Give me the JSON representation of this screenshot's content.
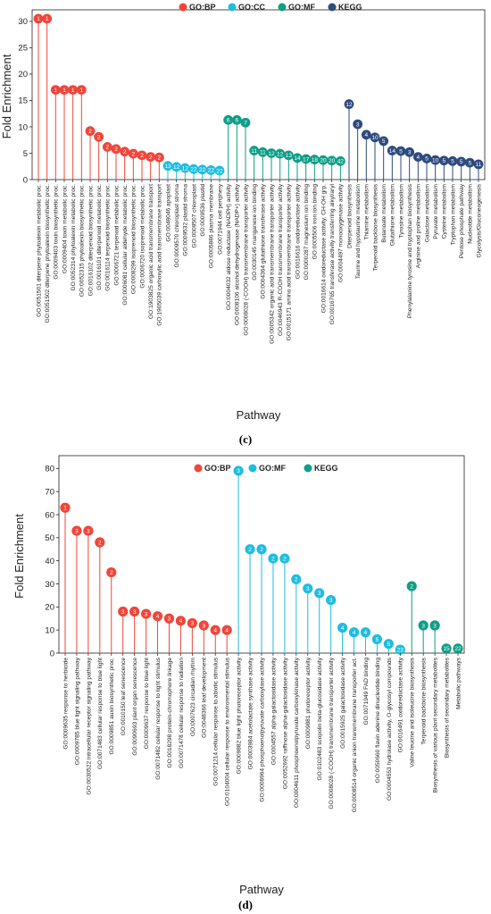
{
  "panel_c_label": "(c)",
  "panel_d_label": "(d)",
  "chart_data": [
    {
      "type": "lollipop",
      "ylabel": "Fold Enrichment",
      "xlabel": "Pathway",
      "ylim": [
        0,
        31.5
      ],
      "yticks": [
        0,
        5,
        10,
        15,
        20,
        25,
        30
      ],
      "grid": false,
      "legend": {
        "position": "top",
        "entries": [
          {
            "name": "GO:BP",
            "color": "#f0463a"
          },
          {
            "name": "GO:CC",
            "color": "#1ebde0"
          },
          {
            "name": "GO:MF",
            "color": "#0e9e86"
          },
          {
            "name": "KEGG",
            "color": "#2e4a7e"
          }
        ]
      },
      "points": [
        {
          "label": "GO:0051501 diterpene phytoalexin metabolic proc.",
          "value": 30.5,
          "count": "1",
          "group": "GO:BP"
        },
        {
          "label": "GO:0051502 diterpene phytoalexin biosynthetic proc.",
          "value": 30.5,
          "count": "1",
          "group": "GO:BP"
        },
        {
          "label": "GO:0009403 toxin biosynthetic proc.",
          "value": 17.0,
          "count": "1",
          "group": "GO:BP"
        },
        {
          "label": "GO:0009404 toxin metabolic proc.",
          "value": 17.0,
          "count": "1",
          "group": "GO:BP"
        },
        {
          "label": "GO:0052314 phytoalexin metabolic proc.",
          "value": 17.0,
          "count": "1",
          "group": "GO:BP"
        },
        {
          "label": "GO:0052315 phytoalexin biosynthetic proc.",
          "value": 17.0,
          "count": "1",
          "group": "GO:BP"
        },
        {
          "label": "GO:0016102 diterpenoid biosynthetic proc.",
          "value": 9.2,
          "count": "2",
          "group": "GO:BP"
        },
        {
          "label": "GO:0016101 diterpenoid metabolic proc.",
          "value": 8.1,
          "count": "2",
          "group": "GO:BP"
        },
        {
          "label": "GO:0016114 terpenoid biosynthetic proc.",
          "value": 6.2,
          "count": "2",
          "group": "GO:BP"
        },
        {
          "label": "GO:0006721 terpenoid metabolic proc.",
          "value": 5.8,
          "count": "2",
          "group": "GO:BP"
        },
        {
          "label": "GO:0006081 cellular aldehyde metabolic proc.",
          "value": 5.3,
          "count": "2",
          "group": "GO:BP"
        },
        {
          "label": "GO:0008299 isoprenoid biosynthetic proc.",
          "value": 4.9,
          "count": "2",
          "group": "GO:BP"
        },
        {
          "label": "GO:0006720 isoprenoid metabolic proc.",
          "value": 4.6,
          "count": "2",
          "group": "GO:BP"
        },
        {
          "label": "GO:1903825 organic acid transmembrane transport",
          "value": 4.3,
          "count": "2",
          "group": "GO:BP"
        },
        {
          "label": "GO:1905039 carboxylic acid transmembrane transport",
          "value": 4.2,
          "count": "2",
          "group": "GO:BP"
        },
        {
          "label": "GO:0048046 apoplast",
          "value": 2.6,
          "count": "13",
          "group": "GO:CC"
        },
        {
          "label": "GO:0009570 chloroplast stroma",
          "value": 2.4,
          "count": "12",
          "group": "GO:CC"
        },
        {
          "label": "GO:0009532 plastid stroma",
          "value": 2.2,
          "count": "12",
          "group": "GO:CC"
        },
        {
          "label": "GO:0009507 chloroplast",
          "value": 2.0,
          "count": "22",
          "group": "GO:CC"
        },
        {
          "label": "GO:0009536 plastid",
          "value": 1.9,
          "count": "22",
          "group": "GO:CC"
        },
        {
          "label": "GO:0005886 plasma membrane",
          "value": 1.8,
          "count": "22",
          "group": "GO:CC"
        },
        {
          "label": "GO:0071944 cell periphery",
          "value": 1.7,
          "count": "22",
          "group": "GO:CC"
        },
        {
          "label": "GO:0004032 aldose reductase (NADPH) activity",
          "value": 11.3,
          "count": "6",
          "group": "GO:MF"
        },
        {
          "label": "GO:0008106 alcohol dehydrogenase (NADP+) activity",
          "value": 11.3,
          "count": "6",
          "group": "GO:MF"
        },
        {
          "label": "GO:0008028 (-COOH) transmembrane transporter activity",
          "value": 10.8,
          "count": "7",
          "group": "GO:MF"
        },
        {
          "label": "GO:0030145 manganese ion binding",
          "value": 5.5,
          "count": "11",
          "group": "GO:MF"
        },
        {
          "label": "GO:0004364 glutathione transferase activity",
          "value": 5.2,
          "count": "11",
          "group": "GO:MF"
        },
        {
          "label": "GO:0005342 organic acid transmembrane transporter activity",
          "value": 5.0,
          "count": "12",
          "group": "GO:MF"
        },
        {
          "label": "GO:0046943 R-COOH transmembrane transporter activity",
          "value": 4.9,
          "count": "12",
          "group": "GO:MF"
        },
        {
          "label": "GO:0015171 amino acid transmembrane transporter activity",
          "value": 4.6,
          "count": "13",
          "group": "GO:MF"
        },
        {
          "label": "GO:0016616 oxidoreductase activity",
          "value": 4.1,
          "count": "14",
          "group": "GO:MF"
        },
        {
          "label": "GO:0000287 magnesium ion binding",
          "value": 3.9,
          "count": "17",
          "group": "GO:MF"
        },
        {
          "label": "GO:0005506 iron ion binding",
          "value": 3.8,
          "count": "18",
          "group": "GO:MF"
        },
        {
          "label": "GO:0016614 oxidoreductase activity, CH-OH grp.",
          "value": 3.7,
          "count": "20",
          "group": "GO:MF"
        },
        {
          "label": "GO:0016765 transferase activity transferring alkyl/aryl",
          "value": 3.6,
          "count": "20",
          "group": "GO:MF"
        },
        {
          "label": "GO:0004497 monooxygenase activity",
          "value": 3.5,
          "count": "42",
          "group": "GO:MF"
        },
        {
          "label": "Diterpenoid biosynthesis",
          "value": 14.3,
          "count": "12",
          "group": "KEGG"
        },
        {
          "label": "Taurine and hypotaurine metabolism",
          "value": 10.5,
          "count": "3",
          "group": "KEGG"
        },
        {
          "label": "Thiamine metabolism",
          "value": 8.5,
          "count": "4",
          "group": "KEGG"
        },
        {
          "label": "Terpenoid backbone biosynthesis",
          "value": 8.0,
          "count": "10",
          "group": "KEGG"
        },
        {
          "label": "Butanoate metabolism",
          "value": 7.3,
          "count": "5",
          "group": "KEGG"
        },
        {
          "label": "Glutathione metabolism",
          "value": 5.5,
          "count": "14",
          "group": "KEGG"
        },
        {
          "label": "Tyrosine metabolism",
          "value": 5.4,
          "count": "5",
          "group": "KEGG"
        },
        {
          "label": "Phenylalanine tyrosine and tryptophan biosynthesis",
          "value": 5.2,
          "count": "3",
          "group": "KEGG"
        },
        {
          "label": "Arginine and proline metabolism",
          "value": 4.3,
          "count": "4",
          "group": "KEGG"
        },
        {
          "label": "Galactose metabolism",
          "value": 4.0,
          "count": "5",
          "group": "KEGG"
        },
        {
          "label": "Pyruvate metabolism",
          "value": 3.7,
          "count": "10",
          "group": "KEGG"
        },
        {
          "label": "Cysteine metabolism",
          "value": 3.6,
          "count": "5",
          "group": "KEGG"
        },
        {
          "label": "Tryptophan metabolism",
          "value": 3.5,
          "count": "5",
          "group": "KEGG"
        },
        {
          "label": "Pentose phosphate pathway",
          "value": 3.4,
          "count": "5",
          "group": "KEGG"
        },
        {
          "label": "Nucleotide metabolism",
          "value": 3.2,
          "count": "5",
          "group": "KEGG"
        },
        {
          "label": "Glycolysis/Gluconeogenesis",
          "value": 2.9,
          "count": "11",
          "group": "KEGG"
        }
      ]
    },
    {
      "type": "lollipop",
      "ylabel": "Fold Enrichment",
      "xlabel": "Pathway",
      "ylim": [
        0,
        84
      ],
      "yticks": [
        0,
        10,
        20,
        30,
        40,
        50,
        60,
        70,
        80
      ],
      "grid": false,
      "legend": {
        "position": "top",
        "entries": [
          {
            "name": "GO:BP",
            "color": "#f0463a"
          },
          {
            "name": "GO:MF",
            "color": "#1ebde0"
          },
          {
            "name": "KEGG",
            "color": "#0e9e86"
          }
        ]
      },
      "points": [
        {
          "label": "GO:0009635 response to herbicide",
          "value": 63,
          "count": "1",
          "group": "GO:BP"
        },
        {
          "label": "GO:0009785 blue light signaling pathway",
          "value": 53,
          "count": "3",
          "group": "GO:BP"
        },
        {
          "label": "GO:0030522 intracellular receptor signaling pathway",
          "value": 53,
          "count": "3",
          "group": "GO:BP"
        },
        {
          "label": "GO:0071483 cellular response to blue light",
          "value": 48,
          "count": "2",
          "group": "GO:BP"
        },
        {
          "label": "GO:0009851 auxin biosynthetic proc.",
          "value": 35,
          "count": "2",
          "group": "GO:BP"
        },
        {
          "label": "GO:0010150 leaf senescence",
          "value": 18,
          "count": "3",
          "group": "GO:BP"
        },
        {
          "label": "GO:0090693 plant organ senescence",
          "value": 18,
          "count": "3",
          "group": "GO:BP"
        },
        {
          "label": "GO:0009637 response to blue light",
          "value": 17,
          "count": "3",
          "group": "GO:BP"
        },
        {
          "label": "GO:0071482 cellular response to light stimulus",
          "value": 16,
          "count": "4",
          "group": "GO:BP"
        },
        {
          "label": "GO:0018298 protein-chromophore linkage",
          "value": 15,
          "count": "3",
          "group": "GO:BP"
        },
        {
          "label": "GO:0071478 cellular response to radiation",
          "value": 14,
          "count": "4",
          "group": "GO:BP"
        },
        {
          "label": "GO:0007623 circadian rhythm",
          "value": 13,
          "count": "3",
          "group": "GO:BP"
        },
        {
          "label": "GO:0048366 leaf development",
          "value": 12,
          "count": "3",
          "group": "GO:BP"
        },
        {
          "label": "GO:0071214 cellular response to abiotic stimulus",
          "value": 10,
          "count": "4",
          "group": "GO:BP"
        },
        {
          "label": "GO:0104004 cellular response to environmental stimulus",
          "value": 10,
          "count": "4",
          "group": "GO:BP"
        },
        {
          "label": "GO:0009882 blue light photoreceptor activity",
          "value": 79,
          "count": "3",
          "group": "GO:MF"
        },
        {
          "label": "GO:0003984 acetolactate synthase activity",
          "value": 45,
          "count": "2",
          "group": "GO:MF"
        },
        {
          "label": "GO:0008964 phosphoenolpyruvate carboxylase activity",
          "value": 45,
          "count": "2",
          "group": "GO:MF"
        },
        {
          "label": "GO:0004557 alpha-galactosidase activity",
          "value": 41,
          "count": "2",
          "group": "GO:MF"
        },
        {
          "label": "GO:0052692 raffinose alpha-galactosidase activity",
          "value": 41,
          "count": "2",
          "group": "GO:MF"
        },
        {
          "label": "GO:0004611 phosphoenolpyruvate carboxykinase activity",
          "value": 32,
          "count": "2",
          "group": "GO:MF"
        },
        {
          "label": "GO:0009881 photoreceptor activity",
          "value": 28,
          "count": "3",
          "group": "GO:MF"
        },
        {
          "label": "GO:0102483 scopolin beta-glucosidase activity",
          "value": 26,
          "count": "3",
          "group": "GO:MF"
        },
        {
          "label": "GO:0008028 (-COOH) transmembrane transporter activity",
          "value": 23,
          "count": "3",
          "group": "GO:MF"
        },
        {
          "label": "GO:0015925 galactosidase activity",
          "value": 11,
          "count": "4",
          "group": "GO:MF"
        },
        {
          "label": "GO:0008514 organic anion transmembrane transporter act.",
          "value": 9,
          "count": "4",
          "group": "GO:MF"
        },
        {
          "label": "GO:0071949 FAD binding",
          "value": 9,
          "count": "4",
          "group": "GO:MF"
        },
        {
          "label": "GO:0050660 flavin adenine dinucleotide binding",
          "value": 6,
          "count": "5",
          "group": "GO:MF"
        },
        {
          "label": "GO:0004553 hydrolase activity, O-glycosyl compounds",
          "value": 4,
          "count": "5",
          "group": "GO:MF"
        },
        {
          "label": "GO:0016491 oxidoreductase activity",
          "value": 1.5,
          "count": "23",
          "group": "GO:MF"
        },
        {
          "label": "Valine leucine and isoleucine biosynthesis",
          "value": 29,
          "count": "2",
          "group": "KEGG"
        },
        {
          "label": "Terpenoid backbone biosynthesis",
          "value": 12,
          "count": "3",
          "group": "KEGG"
        },
        {
          "label": "Biosynthesis of various plant secondary metabolites",
          "value": 12,
          "count": "3",
          "group": "KEGG"
        },
        {
          "label": "Biosynthesis of secondary metabolites",
          "value": 2,
          "count": "15",
          "group": "KEGG"
        },
        {
          "label": "Metabolic pathways",
          "value": 2,
          "count": "22",
          "group": "KEGG"
        }
      ]
    }
  ]
}
